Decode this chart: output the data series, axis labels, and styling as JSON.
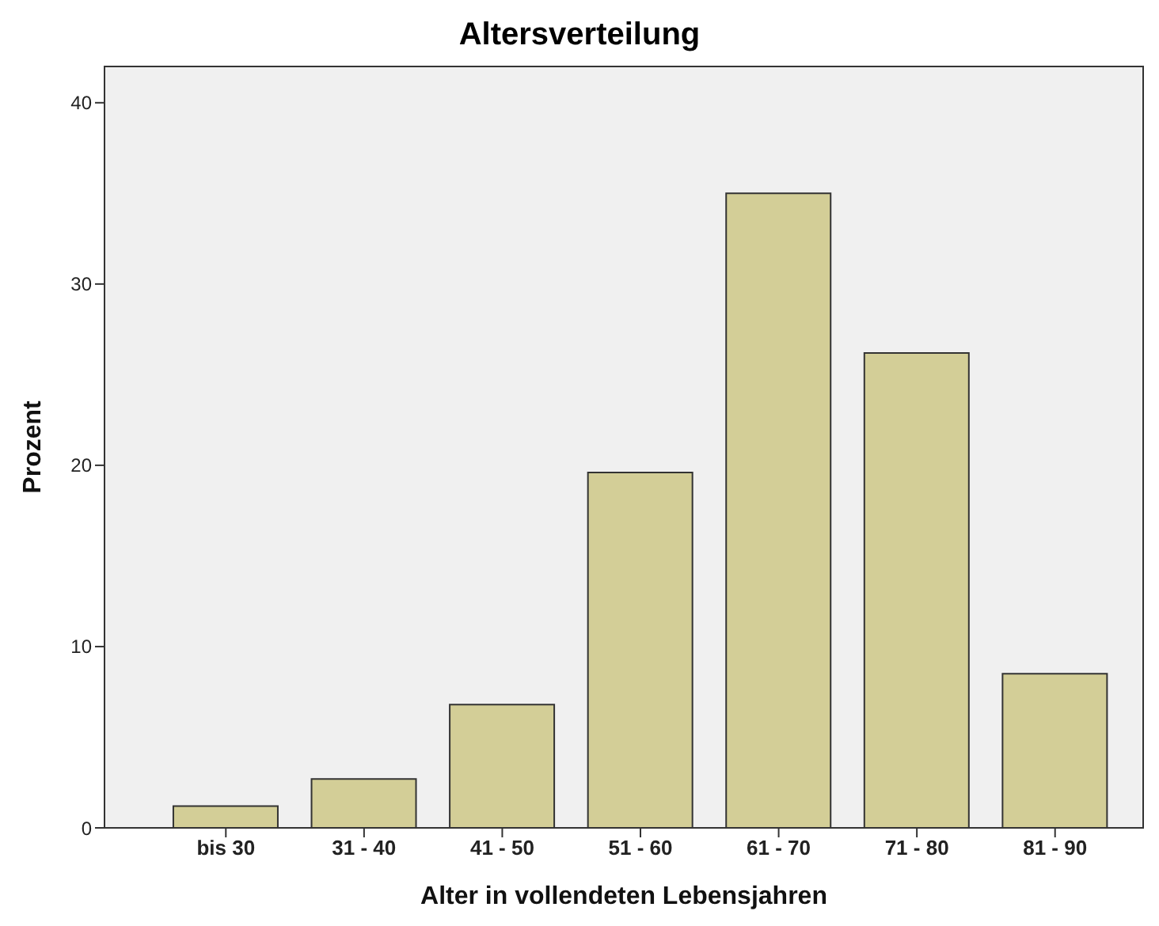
{
  "chart_data": {
    "type": "bar",
    "title": "Altersverteilung",
    "xlabel": "Alter in vollendeten Lebensjahren",
    "ylabel": "Prozent",
    "categories": [
      "bis 30",
      "31 - 40",
      "41 - 50",
      "51 - 60",
      "61 - 70",
      "71 - 80",
      "81 - 90"
    ],
    "values": [
      1.2,
      2.7,
      6.8,
      19.6,
      35,
      26.2,
      8.5
    ],
    "color": "#d3ce97",
    "ylim": [
      0,
      42
    ],
    "yticks": [
      0,
      10,
      20,
      30,
      40
    ],
    "legend": false
  }
}
